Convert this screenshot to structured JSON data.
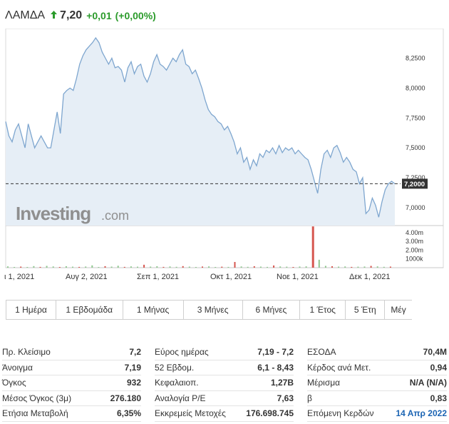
{
  "header": {
    "name": "ΛΑΜΔΑ",
    "price": "7,20",
    "change": "+0,01",
    "change_pct": "(+0,00%)",
    "arrow_icon": "up-arrow-icon",
    "up_color": "#2b9b2b"
  },
  "chart": {
    "watermark_brand": "Investing",
    "watermark_suffix": ".com",
    "current_label": "7,2000",
    "y_ticks": [
      "8,2500",
      "8,0000",
      "7,7500",
      "7,5000",
      "7,2500",
      "7,0000"
    ],
    "volume_ticks": [
      "4.00m",
      "3.00m",
      "2.00m",
      "1000k"
    ],
    "x_ticks": [
      "ι 1, 2021",
      "Αυγ 2, 2021",
      "Σεπ 1, 2021",
      "Οκτ 1, 2021",
      "Νοε 1, 2021",
      "Δεκ 1, 2021"
    ],
    "line_color": "#7ea6cf",
    "fill_color": "#e6eef6"
  },
  "chart_data": {
    "type": "area",
    "ylim": [
      6.85,
      8.45
    ],
    "current": 7.2,
    "series": [
      {
        "values": [
          7.72,
          7.6,
          7.55,
          7.65,
          7.7,
          7.6,
          7.5,
          7.7,
          7.6,
          7.5,
          7.55,
          7.6,
          7.55,
          7.5,
          7.5,
          7.65,
          7.8,
          7.62,
          7.95,
          7.98,
          8.0,
          7.98,
          8.08,
          8.2,
          8.27,
          8.32,
          8.35,
          8.38,
          8.42,
          8.38,
          8.3,
          8.25,
          8.2,
          8.25,
          8.17,
          8.18,
          8.15,
          8.05,
          8.17,
          8.22,
          8.12,
          8.18,
          8.2,
          8.1,
          8.05,
          8.12,
          8.22,
          8.28,
          8.2,
          8.18,
          8.15,
          8.2,
          8.25,
          8.22,
          8.28,
          8.32,
          8.2,
          8.18,
          8.12,
          8.15,
          8.08,
          8.0,
          7.9,
          7.82,
          7.78,
          7.76,
          7.72,
          7.7,
          7.65,
          7.68,
          7.62,
          7.55,
          7.45,
          7.5,
          7.38,
          7.42,
          7.32,
          7.4,
          7.35,
          7.45,
          7.42,
          7.48,
          7.46,
          7.5,
          7.45,
          7.52,
          7.46,
          7.5,
          7.48,
          7.5,
          7.45,
          7.48,
          7.45,
          7.42,
          7.4,
          7.32,
          7.22,
          7.12,
          7.32,
          7.45,
          7.48,
          7.42,
          7.5,
          7.52,
          7.46,
          7.38,
          7.42,
          7.38,
          7.32,
          7.3,
          7.2,
          7.25,
          6.95,
          6.98,
          7.08,
          7.02,
          6.92,
          7.05,
          7.15,
          7.2,
          7.22,
          7.2
        ]
      }
    ],
    "volume": [
      {
        "v": 150,
        "c": "g"
      },
      {
        "v": 80,
        "c": "g"
      },
      {
        "v": 120,
        "c": "r"
      },
      {
        "v": 60,
        "c": "g"
      },
      {
        "v": 180,
        "c": "g"
      },
      {
        "v": 90,
        "c": "r"
      },
      {
        "v": 200,
        "c": "g"
      },
      {
        "v": 140,
        "c": "g"
      },
      {
        "v": 70,
        "c": "r"
      },
      {
        "v": 160,
        "c": "g"
      },
      {
        "v": 110,
        "c": "g"
      },
      {
        "v": 90,
        "c": "r"
      },
      {
        "v": 130,
        "c": "g"
      },
      {
        "v": 260,
        "c": "g"
      },
      {
        "v": 80,
        "c": "g"
      },
      {
        "v": 170,
        "c": "r"
      },
      {
        "v": 120,
        "c": "g"
      },
      {
        "v": 220,
        "c": "g"
      },
      {
        "v": 90,
        "c": "r"
      },
      {
        "v": 150,
        "c": "g"
      },
      {
        "v": 110,
        "c": "g"
      },
      {
        "v": 330,
        "c": "r"
      },
      {
        "v": 120,
        "c": "g"
      },
      {
        "v": 160,
        "c": "g"
      },
      {
        "v": 90,
        "c": "r"
      },
      {
        "v": 140,
        "c": "g"
      },
      {
        "v": 100,
        "c": "g"
      },
      {
        "v": 180,
        "c": "r"
      },
      {
        "v": 120,
        "c": "g"
      },
      {
        "v": 80,
        "c": "g"
      },
      {
        "v": 130,
        "c": "r"
      },
      {
        "v": 150,
        "c": "g"
      },
      {
        "v": 70,
        "c": "g"
      },
      {
        "v": 110,
        "c": "r"
      },
      {
        "v": 90,
        "c": "g"
      },
      {
        "v": 650,
        "c": "r"
      },
      {
        "v": 140,
        "c": "g"
      },
      {
        "v": 100,
        "c": "g"
      },
      {
        "v": 160,
        "c": "r"
      },
      {
        "v": 120,
        "c": "g"
      },
      {
        "v": 90,
        "c": "g"
      },
      {
        "v": 250,
        "c": "r"
      },
      {
        "v": 140,
        "c": "g"
      },
      {
        "v": 110,
        "c": "g"
      },
      {
        "v": 80,
        "c": "r"
      },
      {
        "v": 130,
        "c": "g"
      },
      {
        "v": 150,
        "c": "g"
      },
      {
        "v": 4700,
        "c": "r"
      },
      {
        "v": 900,
        "c": "g"
      },
      {
        "v": 200,
        "c": "g"
      },
      {
        "v": 160,
        "c": "r"
      },
      {
        "v": 120,
        "c": "g"
      },
      {
        "v": 140,
        "c": "g"
      },
      {
        "v": 90,
        "c": "r"
      },
      {
        "v": 110,
        "c": "g"
      },
      {
        "v": 130,
        "c": "g"
      },
      {
        "v": 200,
        "c": "r"
      },
      {
        "v": 150,
        "c": "g"
      },
      {
        "v": 100,
        "c": "g"
      },
      {
        "v": 120,
        "c": "r"
      }
    ]
  },
  "periods": [
    "1 Ημέρα",
    "1 Εβδομάδα",
    "1 Μήνας",
    "3 Μήνες",
    "6 Μήνες",
    "1 Έτος",
    "5 Έτη",
    "Μέγ"
  ],
  "stats": {
    "col1": [
      {
        "label": "Πρ. Κλείσιμο",
        "value": "7,2"
      },
      {
        "label": "Άνοιγμα",
        "value": "7,19"
      },
      {
        "label": "Όγκος",
        "value": "932"
      },
      {
        "label": "Μέσος Όγκος (3μ)",
        "value": "276.180"
      },
      {
        "label": "Ετήσια Μεταβολή",
        "value": "6,35%"
      }
    ],
    "col2": [
      {
        "label": "Εύρος ημέρας",
        "value": "7,19 - 7,2"
      },
      {
        "label": "52 Εβδομ.",
        "value": "6,1 - 8,43"
      },
      {
        "label": "Κεφαλαιοπ.",
        "value": "1,27B"
      },
      {
        "label": "Αναλογία P/E",
        "value": "7,63"
      },
      {
        "label": "Εκκρεμείς Μετοχές",
        "value": "176.698.745"
      }
    ],
    "col3": [
      {
        "label": "ΕΣΟΔΑ",
        "value": "70,4M"
      },
      {
        "label": "Κέρδος ανά Μετ.",
        "value": "0,94"
      },
      {
        "label": "Μέρισμα",
        "value": "N/A (N/A)"
      },
      {
        "label": "β",
        "value": "0,83"
      },
      {
        "label": "Επόμενη Κερδών",
        "value": "14 Απρ 2022",
        "link": true
      }
    ]
  }
}
